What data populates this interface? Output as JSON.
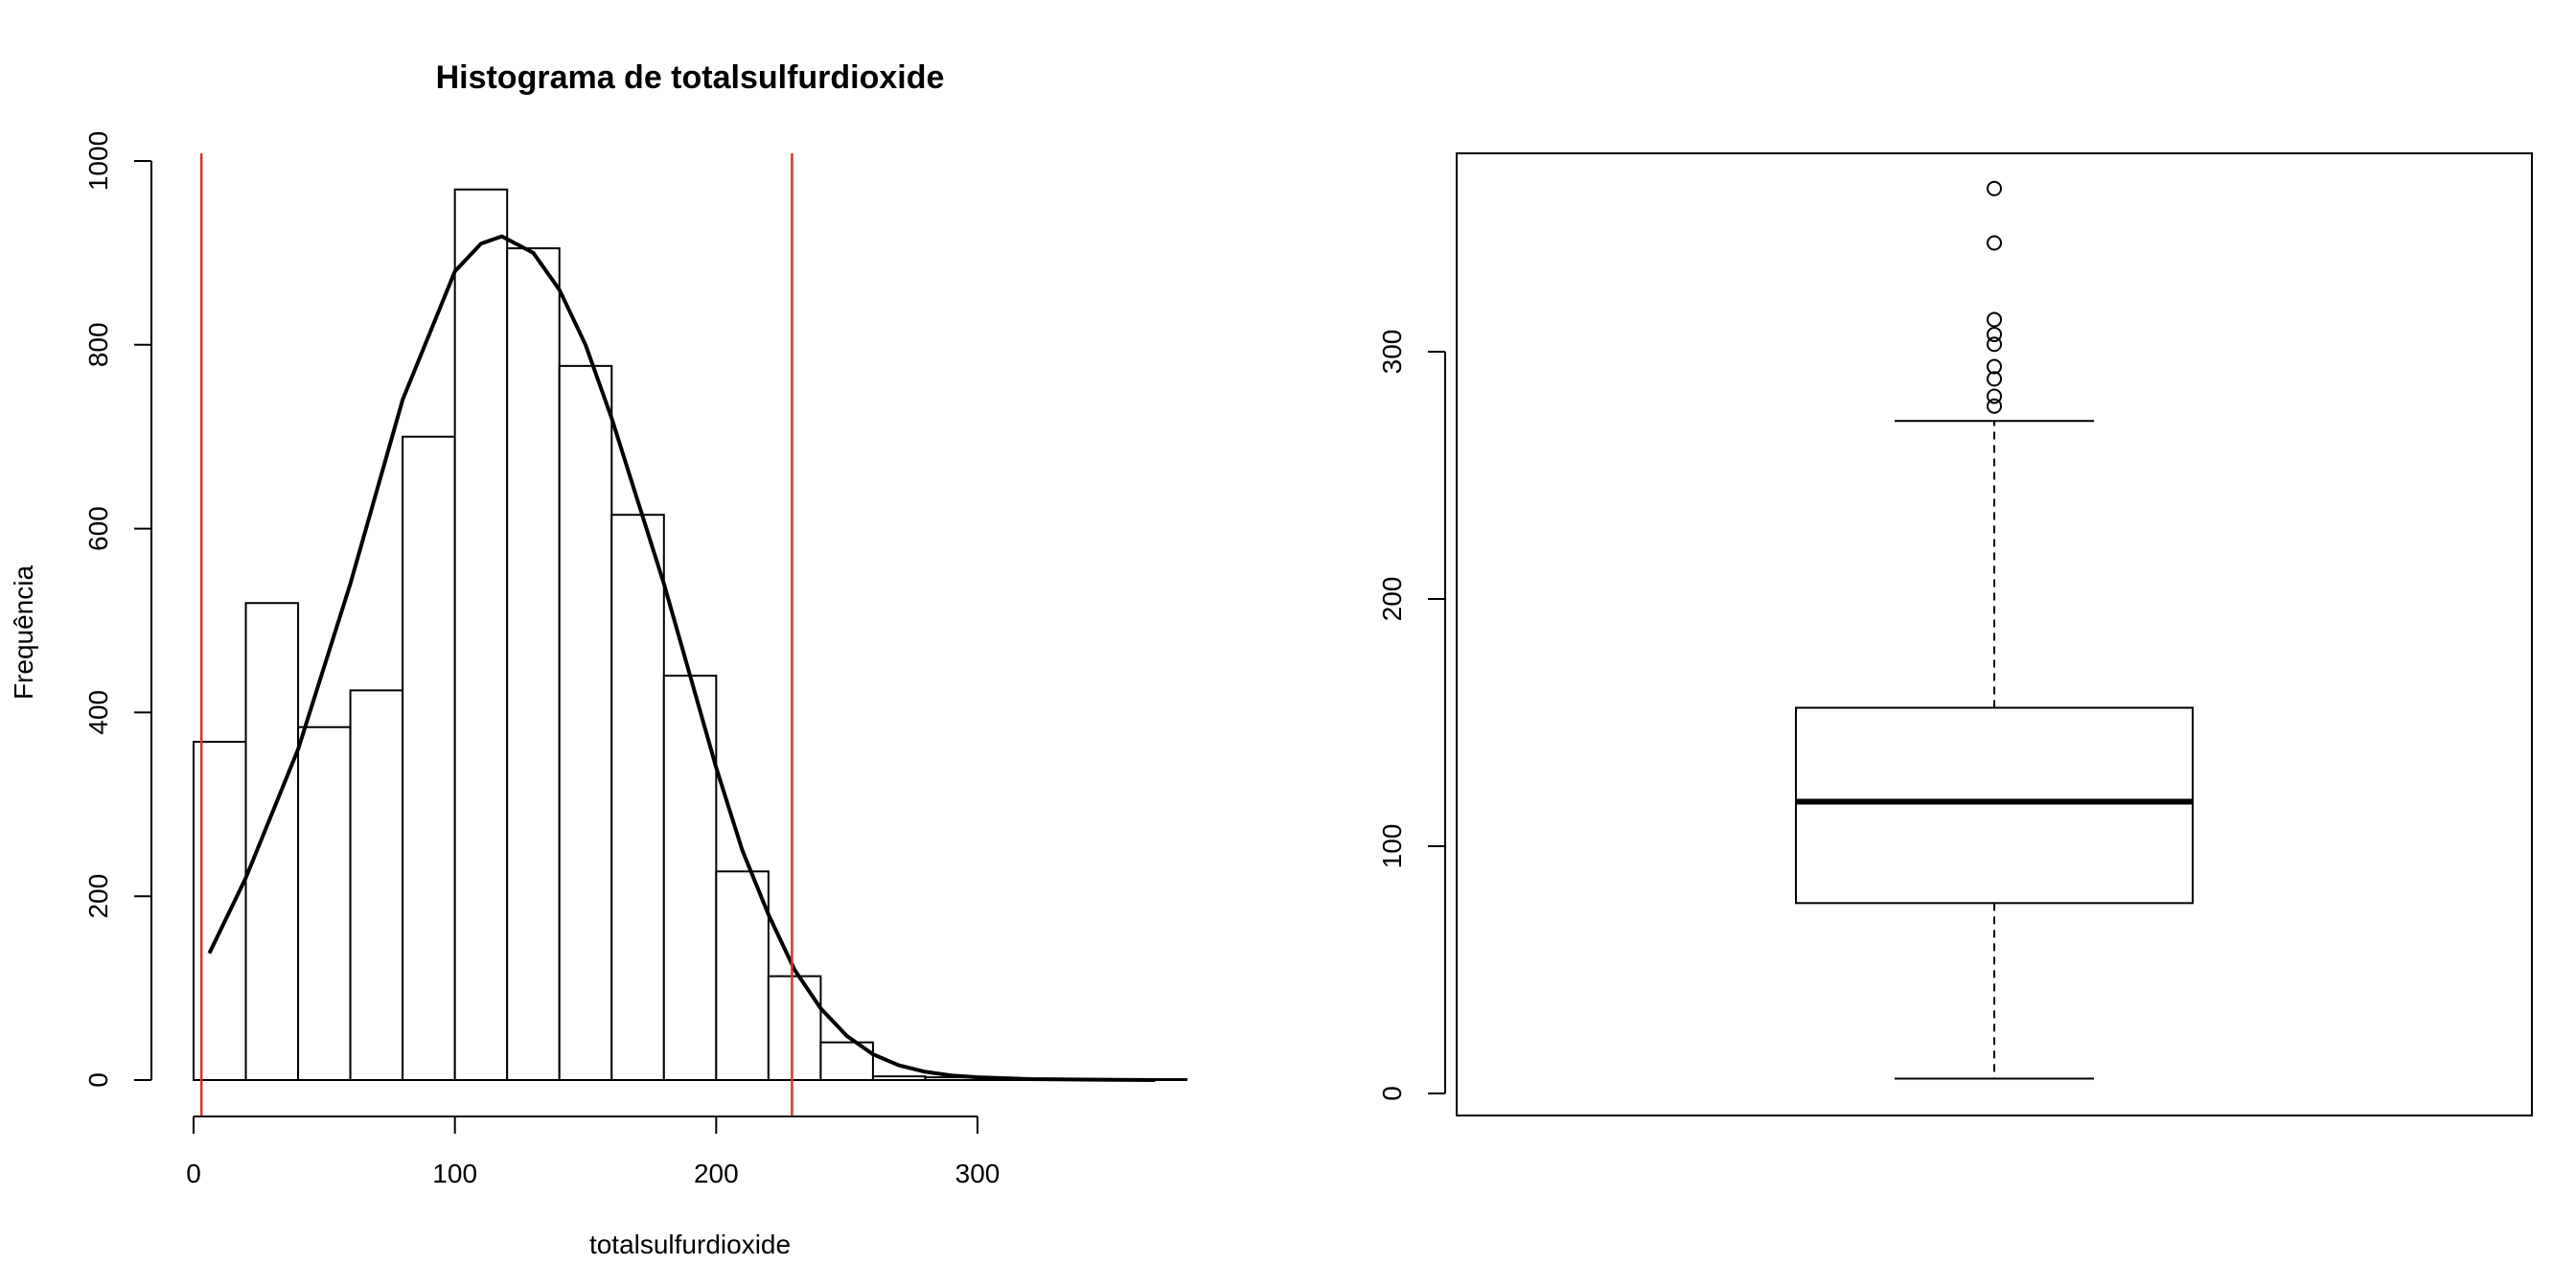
{
  "chart_data": [
    {
      "type": "histogram",
      "title": "Histograma de  totalsulfurdioxide",
      "xlabel": "totalsulfurdioxide",
      "ylabel": "Frequência",
      "xlim": [
        -10,
        380
      ],
      "ylim": [
        0,
        1000
      ],
      "x_ticks": [
        "0",
        "100",
        "200",
        "300"
      ],
      "y_ticks": [
        "0",
        "200",
        "400",
        "600",
        "800",
        "1000"
      ],
      "bins": [
        {
          "start": 0,
          "end": 20,
          "count": 368
        },
        {
          "start": 20,
          "end": 40,
          "count": 519
        },
        {
          "start": 40,
          "end": 60,
          "count": 384
        },
        {
          "start": 60,
          "end": 80,
          "count": 424
        },
        {
          "start": 80,
          "end": 100,
          "count": 700
        },
        {
          "start": 100,
          "end": 120,
          "count": 969
        },
        {
          "start": 120,
          "end": 140,
          "count": 905
        },
        {
          "start": 140,
          "end": 160,
          "count": 777
        },
        {
          "start": 160,
          "end": 180,
          "count": 615
        },
        {
          "start": 180,
          "end": 200,
          "count": 440
        },
        {
          "start": 200,
          "end": 220,
          "count": 227
        },
        {
          "start": 220,
          "end": 240,
          "count": 113
        },
        {
          "start": 240,
          "end": 260,
          "count": 41
        },
        {
          "start": 260,
          "end": 280,
          "count": 4
        },
        {
          "start": 280,
          "end": 300,
          "count": 3
        },
        {
          "start": 300,
          "end": 320,
          "count": 1
        },
        {
          "start": 320,
          "end": 340,
          "count": 0
        },
        {
          "start": 340,
          "end": 360,
          "count": 1
        },
        {
          "start": 360,
          "end": 380,
          "count": 1
        }
      ],
      "density_curve": {
        "color": "#000000",
        "points": [
          [
            6,
            138
          ],
          [
            20,
            220
          ],
          [
            40,
            360
          ],
          [
            60,
            540
          ],
          [
            80,
            740
          ],
          [
            100,
            880
          ],
          [
            110,
            910
          ],
          [
            118,
            918
          ],
          [
            130,
            900
          ],
          [
            140,
            860
          ],
          [
            150,
            800
          ],
          [
            160,
            720
          ],
          [
            170,
            630
          ],
          [
            180,
            540
          ],
          [
            190,
            440
          ],
          [
            200,
            340
          ],
          [
            210,
            250
          ],
          [
            220,
            180
          ],
          [
            230,
            120
          ],
          [
            240,
            78
          ],
          [
            250,
            48
          ],
          [
            260,
            28
          ],
          [
            270,
            16
          ],
          [
            280,
            9
          ],
          [
            290,
            5
          ],
          [
            300,
            3
          ],
          [
            320,
            1
          ],
          [
            340,
            0.5
          ],
          [
            368,
            0
          ]
        ]
      },
      "reference_lines": [
        {
          "x": 3,
          "color": "#e0302a"
        },
        {
          "x": 229,
          "color": "#e0302a"
        }
      ]
    },
    {
      "type": "boxplot",
      "ylim": [
        0,
        370
      ],
      "y_ticks": [
        "0",
        "100",
        "200",
        "300"
      ],
      "box": {
        "whisker_low": 6,
        "q1": 77,
        "median": 118,
        "q3": 156,
        "whisker_high": 272
      },
      "outliers": [
        278,
        282,
        289,
        294,
        303,
        307,
        313,
        344,
        366
      ]
    }
  ]
}
